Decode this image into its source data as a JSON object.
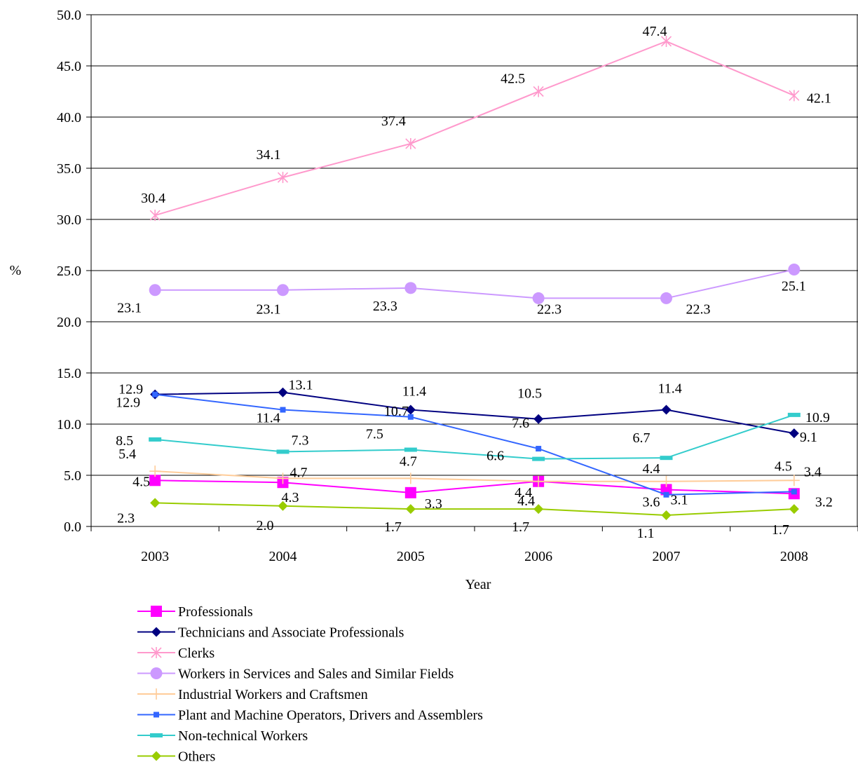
{
  "chart_data": {
    "type": "line",
    "title": "",
    "xlabel": "Year",
    "ylabel": "%",
    "ylim": [
      0,
      50
    ],
    "yticks": [
      "0.0",
      "5.0",
      "10.0",
      "15.0",
      "20.0",
      "25.0",
      "30.0",
      "35.0",
      "40.0",
      "45.0",
      "50.0"
    ],
    "categories": [
      "2003",
      "2004",
      "2005",
      "2006",
      "2007",
      "2008"
    ],
    "grid": "horizontal",
    "legend_position": "bottom",
    "series": [
      {
        "name": "Professionals",
        "values": [
          4.5,
          4.3,
          3.3,
          4.4,
          3.6,
          3.2
        ],
        "color": "#ff00ff",
        "marker": "square"
      },
      {
        "name": "Technicians and Associate Professionals",
        "values": [
          12.9,
          13.1,
          11.4,
          10.5,
          11.4,
          9.1
        ],
        "color": "#000080",
        "marker": "diamond"
      },
      {
        "name": "Clerks",
        "values": [
          30.4,
          34.1,
          37.4,
          42.5,
          47.4,
          42.1
        ],
        "color": "#ff99cc",
        "marker": "asterisk"
      },
      {
        "name": "Workers in Services and Sales and Similar Fields",
        "values": [
          23.1,
          23.1,
          23.3,
          22.3,
          22.3,
          25.1
        ],
        "color": "#cc99ff",
        "marker": "circle"
      },
      {
        "name": "Industrial Workers and Craftsmen",
        "values": [
          5.4,
          4.7,
          4.7,
          4.4,
          4.4,
          4.5
        ],
        "color": "#ffcc99",
        "marker": "plus"
      },
      {
        "name": "Plant and Machine Operators, Drivers and Assemblers",
        "values": [
          12.9,
          11.4,
          10.7,
          7.6,
          3.1,
          3.4
        ],
        "color": "#3366ff",
        "marker": "small-square"
      },
      {
        "name": "Non-technical Workers",
        "values": [
          8.5,
          7.3,
          7.5,
          6.6,
          6.7,
          10.9
        ],
        "color": "#33cccc",
        "marker": "dash"
      },
      {
        "name": "Others",
        "values": [
          2.3,
          2.0,
          1.7,
          1.7,
          1.1,
          1.7
        ],
        "color": "#99cc00",
        "marker": "diamond"
      }
    ]
  }
}
